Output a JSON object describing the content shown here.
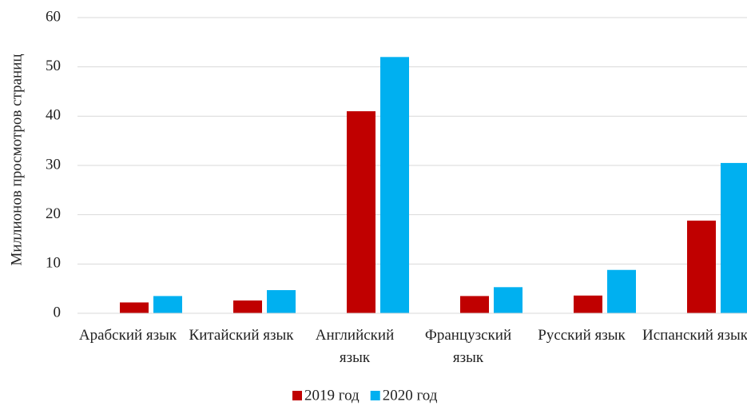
{
  "chart_data": {
    "type": "bar",
    "categories": [
      "Арабский язык",
      "Китайский язык",
      "Английский язык",
      "Французский язык",
      "Русский язык",
      "Испанский язык"
    ],
    "series": [
      {
        "name": "2019 год",
        "color": "#c00000",
        "values": [
          2.2,
          2.6,
          41,
          3.5,
          3.6,
          18.8
        ]
      },
      {
        "name": "2020 год",
        "color": "#00b0f0",
        "values": [
          3.5,
          4.7,
          52,
          5.3,
          8.8,
          30.5
        ]
      }
    ],
    "ylabel": "Миллионов просмотров страниц",
    "ylim": [
      0,
      60
    ],
    "yticks": [
      0,
      10,
      20,
      30,
      40,
      50,
      60
    ],
    "grid": true,
    "legend": "bottom"
  }
}
